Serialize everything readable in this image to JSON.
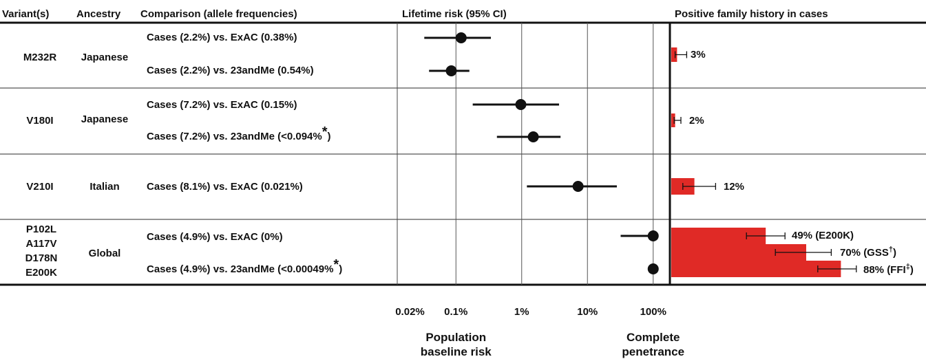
{
  "headers": {
    "variants": "Variant(s)",
    "ancestry": "Ancestry",
    "comparison": "Comparison (allele frequencies)",
    "risk": "Lifetime risk (95% CI)",
    "family": "Positive family history in cases"
  },
  "groups": [
    {
      "variants": [
        "M232R"
      ],
      "ancestry": "Japanese",
      "comparisons": [
        "Cases (2.2%) vs. ExAC (0.38%)",
        "Cases (2.2%) vs. 23andMe (0.54%)"
      ],
      "family_labels": [
        "3%"
      ]
    },
    {
      "variants": [
        "V180I"
      ],
      "ancestry": "Japanese",
      "comparisons": [
        "Cases (7.2%) vs. ExAC (0.15%)",
        "Cases (7.2%) vs. 23andMe (<0.094%"
      ],
      "comparison_marks": [
        "",
        "*"
      ],
      "comparison_suffix": [
        "",
        ")"
      ],
      "family_labels": [
        "2%"
      ]
    },
    {
      "variants": [
        "V210I"
      ],
      "ancestry": "Italian",
      "comparisons": [
        "Cases (8.1%) vs. ExAC (0.021%)"
      ],
      "family_labels": [
        "12%"
      ]
    },
    {
      "variants": [
        "P102L",
        "A117V",
        "D178N",
        "E200K"
      ],
      "ancestry": "Global",
      "comparisons": [
        "Cases (4.9%) vs. ExAC (0%)",
        "Cases (4.9%) vs. 23andMe (<0.00049%"
      ],
      "comparison_marks": [
        "",
        "*"
      ],
      "comparison_suffix": [
        "",
        ")"
      ],
      "family_labels": [
        "49% (E200K)",
        "70% (GSS",
        "88% (FFI"
      ],
      "family_marks": [
        "",
        "†",
        "‡"
      ],
      "family_suffix": [
        "",
        ")",
        ")"
      ]
    }
  ],
  "chart_data": [
    {
      "type": "scatter",
      "title": "Lifetime risk (95% CI)",
      "x_scale": "log",
      "x_ticks": [
        "0.02%",
        "0.1%",
        "1%",
        "10%",
        "100%"
      ],
      "x_tick_values": [
        0.02,
        0.1,
        1,
        10,
        100
      ],
      "xlim": [
        0.02,
        150
      ],
      "x_annotations": [
        {
          "at": 0.1,
          "text": [
            "Population",
            "baseline risk"
          ]
        },
        {
          "at": 100,
          "text": [
            "Complete",
            "penetrance"
          ]
        }
      ],
      "points": [
        {
          "row": "M232R · ExAC",
          "estimate": 0.12,
          "ci": [
            0.033,
            0.34
          ]
        },
        {
          "row": "M232R · 23andMe",
          "estimate": 0.085,
          "ci": [
            0.039,
            0.16
          ]
        },
        {
          "row": "V180I · ExAC",
          "estimate": 0.97,
          "ci": [
            0.18,
            3.7
          ]
        },
        {
          "row": "V180I · 23andMe",
          "estimate": 1.5,
          "ci": [
            0.42,
            3.9
          ]
        },
        {
          "row": "V210I · ExAC",
          "estimate": 7.2,
          "ci": [
            1.2,
            28
          ]
        },
        {
          "row": "Global · ExAC",
          "estimate": 100,
          "ci": [
            32,
            100
          ]
        },
        {
          "row": "Global · 23andMe",
          "estimate": 100,
          "ci": [
            93,
            100
          ]
        }
      ]
    },
    {
      "type": "bar",
      "orientation": "horizontal",
      "title": "Positive family history in cases",
      "unit": "%",
      "xlim": [
        0,
        100
      ],
      "bar_color": "#e02a26",
      "bars": [
        {
          "group": "M232R",
          "label": "3%",
          "value": 3,
          "ci": [
            2,
            8
          ]
        },
        {
          "group": "V180I",
          "label": "2%",
          "value": 2,
          "ci": [
            1.5,
            5
          ]
        },
        {
          "group": "V210I",
          "label": "12%",
          "value": 12,
          "ci": [
            6,
            23
          ]
        },
        {
          "group": "Global",
          "label": "49% (E200K)",
          "value": 49,
          "ci": [
            39,
            59
          ]
        },
        {
          "group": "Global",
          "label": "70% (GSS†)",
          "value": 70,
          "ci": [
            54,
            83
          ]
        },
        {
          "group": "Global",
          "label": "88% (FFI‡)",
          "value": 88,
          "ci": [
            76,
            96
          ]
        }
      ]
    }
  ]
}
